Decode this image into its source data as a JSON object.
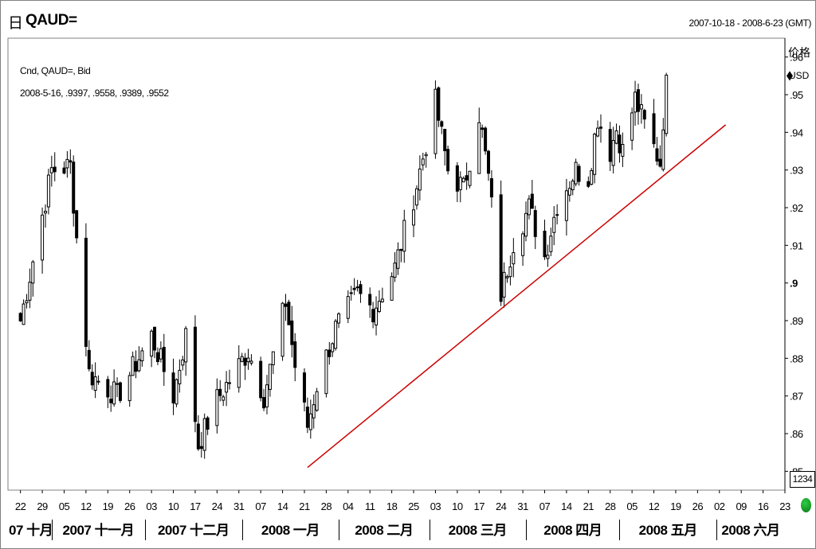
{
  "header": {
    "icon_glyph": "日",
    "ric": "QAUD=",
    "date_range": "2007-10-18 - 2008-6-23 (GMT)"
  },
  "legend": {
    "series": "Cnd, QAUD=, Bid",
    "last_ohlc": "2008-5-16, .9397, .9558, .9389, .9552"
  },
  "axis_header": {
    "price_label": "价格",
    "currency": "USD"
  },
  "count_box": "1234",
  "colors": {
    "candle": "#000000",
    "trendline": "#cc0000",
    "grid_tick": "#000000",
    "status_dot": "#1aa32a"
  },
  "chart_data": {
    "type": "candlestick",
    "y_axis": {
      "range": [
        0.845,
        0.965
      ],
      "ticks": [
        ".96",
        ".95",
        ".94",
        ".93",
        ".92",
        ".91",
        ".9",
        ".89",
        ".88",
        ".87",
        ".86",
        ".85"
      ],
      "tick_values": [
        0.96,
        0.95,
        0.94,
        0.93,
        0.92,
        0.91,
        0.9,
        0.89,
        0.88,
        0.87,
        0.86,
        0.85
      ],
      "bold_tick": ".9"
    },
    "x_axis": {
      "ticks": [
        "22",
        "29",
        "05",
        "12",
        "19",
        "26",
        "03",
        "10",
        "17",
        "24",
        "31",
        "07",
        "14",
        "21",
        "28",
        "04",
        "11",
        "18",
        "25",
        "03",
        "10",
        "17",
        "24",
        "31",
        "07",
        "14",
        "21",
        "28",
        "05",
        "12",
        "19",
        "26",
        "02",
        "09",
        "16",
        "23"
      ],
      "months": [
        "07 十月",
        "2007 十一月",
        "2007 十二月",
        "2008 一月",
        "2008 二月",
        "2008 三月",
        "2008 四月",
        "2008 五月",
        "2008 六月"
      ]
    },
    "key_points": [
      {
        "date": "2007-10-22",
        "close": 0.89
      },
      {
        "date": "2007-11-01",
        "close": 0.93
      },
      {
        "date": "2007-11-07",
        "close": 0.931
      },
      {
        "date": "2007-11-09",
        "close": 0.912
      },
      {
        "date": "2007-11-13",
        "close": 0.876
      },
      {
        "date": "2007-11-22",
        "close": 0.87
      },
      {
        "date": "2007-12-03",
        "close": 0.886
      },
      {
        "date": "2007-12-10",
        "close": 0.87
      },
      {
        "date": "2007-12-14",
        "close": 0.886
      },
      {
        "date": "2007-12-18",
        "close": 0.857
      },
      {
        "date": "2007-12-24",
        "close": 0.869
      },
      {
        "date": "2008-01-03",
        "close": 0.882
      },
      {
        "date": "2008-01-08",
        "close": 0.87
      },
      {
        "date": "2008-01-15",
        "close": 0.895
      },
      {
        "date": "2008-01-18",
        "close": 0.878
      },
      {
        "date": "2008-01-22",
        "close": 0.862
      },
      {
        "date": "2008-01-25",
        "close": 0.873
      },
      {
        "date": "2008-01-31",
        "close": 0.888
      },
      {
        "date": "2008-02-07",
        "close": 0.897
      },
      {
        "date": "2008-02-12",
        "close": 0.893
      },
      {
        "date": "2008-02-19",
        "close": 0.904
      },
      {
        "date": "2008-02-26",
        "close": 0.926
      },
      {
        "date": "2008-03-03",
        "close": 0.948
      },
      {
        "date": "2008-03-07",
        "close": 0.93
      },
      {
        "date": "2008-03-12",
        "close": 0.925
      },
      {
        "date": "2008-03-17",
        "close": 0.945
      },
      {
        "date": "2008-03-20",
        "close": 0.928
      },
      {
        "date": "2008-03-24",
        "close": 0.897
      },
      {
        "date": "2008-03-28",
        "close": 0.911
      },
      {
        "date": "2008-04-02",
        "close": 0.92
      },
      {
        "date": "2008-04-07",
        "close": 0.907
      },
      {
        "date": "2008-04-11",
        "close": 0.921
      },
      {
        "date": "2008-04-17",
        "close": 0.93
      },
      {
        "date": "2008-04-21",
        "close": 0.928
      },
      {
        "date": "2008-04-24",
        "close": 0.944
      },
      {
        "date": "2008-04-28",
        "close": 0.935
      },
      {
        "date": "2008-04-30",
        "close": 0.941
      },
      {
        "date": "2008-05-02",
        "close": 0.935
      },
      {
        "date": "2008-05-06",
        "close": 0.949
      },
      {
        "date": "2008-05-09",
        "close": 0.942
      },
      {
        "date": "2008-05-14",
        "close": 0.932
      },
      {
        "date": "2008-05-16",
        "close": 0.9552
      }
    ],
    "last_bar": {
      "date": "2008-5-16",
      "open": 0.9397,
      "high": 0.9558,
      "low": 0.9389,
      "close": 0.9552
    },
    "trendline": {
      "from": {
        "date": "2008-01-22",
        "value": 0.851
      },
      "to": {
        "date": "2008-06-04",
        "value": 0.942
      }
    },
    "last_price_marker": 0.955
  }
}
